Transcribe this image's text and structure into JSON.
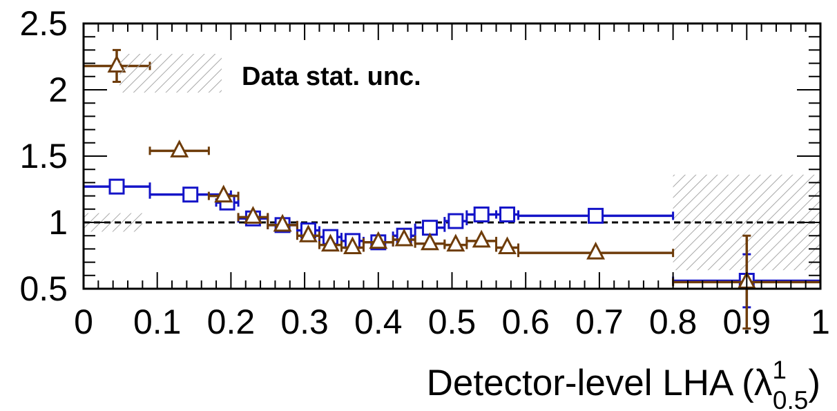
{
  "chart_data": {
    "type": "scatter",
    "title": "",
    "xlabel": {
      "main": "Detector-level LHA (λ",
      "sup": "1",
      "sub": "0.5",
      "close": ")"
    },
    "ylabel": "",
    "xlim": [
      0,
      1
    ],
    "ylim": [
      0.5,
      2.5
    ],
    "x_ticks": [
      "0",
      "0.1",
      "0.2",
      "0.3",
      "0.4",
      "0.5",
      "0.6",
      "0.7",
      "0.8",
      "0.9",
      "1"
    ],
    "y_ticks": [
      "0.5",
      "1",
      "1.5",
      "2",
      "2.5"
    ],
    "reference_line": 1.0,
    "legend": [
      {
        "label": "Data stat. unc.",
        "style": "hatched",
        "position": "top-left"
      }
    ],
    "hatch_bands": [
      {
        "x": [
          0.0,
          0.08
        ],
        "y": [
          0.93,
          1.07
        ]
      },
      {
        "x": [
          0.8,
          1.0
        ],
        "y": [
          0.64,
          1.36
        ]
      }
    ],
    "series": [
      {
        "marker": "open-square",
        "color": "#1414c8",
        "points": [
          {
            "xlo": 0.0,
            "xhi": 0.09,
            "y": 1.27,
            "yerr": 0.05
          },
          {
            "xlo": 0.09,
            "xhi": 0.2,
            "y": 1.21,
            "yerr": 0.02
          },
          {
            "xlo": 0.18,
            "xhi": 0.21,
            "y": 1.15,
            "yerr": 0.02
          },
          {
            "xlo": 0.21,
            "xhi": 0.25,
            "y": 1.03,
            "yerr": 0.01
          },
          {
            "xlo": 0.25,
            "xhi": 0.29,
            "y": 0.98,
            "yerr": 0.01
          },
          {
            "xlo": 0.29,
            "xhi": 0.32,
            "y": 0.94,
            "yerr": 0.01
          },
          {
            "xlo": 0.32,
            "xhi": 0.35,
            "y": 0.89,
            "yerr": 0.01
          },
          {
            "xlo": 0.35,
            "xhi": 0.38,
            "y": 0.86,
            "yerr": 0.01
          },
          {
            "xlo": 0.38,
            "xhi": 0.42,
            "y": 0.85,
            "yerr": 0.01
          },
          {
            "xlo": 0.42,
            "xhi": 0.45,
            "y": 0.9,
            "yerr": 0.01
          },
          {
            "xlo": 0.45,
            "xhi": 0.49,
            "y": 0.96,
            "yerr": 0.01
          },
          {
            "xlo": 0.49,
            "xhi": 0.52,
            "y": 1.01,
            "yerr": 0.01
          },
          {
            "xlo": 0.52,
            "xhi": 0.56,
            "y": 1.06,
            "yerr": 0.01
          },
          {
            "xlo": 0.56,
            "xhi": 0.59,
            "y": 1.06,
            "yerr": 0.01
          },
          {
            "xlo": 0.59,
            "xhi": 0.8,
            "y": 1.05,
            "yerr": 0.01
          },
          {
            "xlo": 0.8,
            "xhi": 1.0,
            "y": 0.56,
            "yerr": 0.2
          }
        ]
      },
      {
        "marker": "open-triangle",
        "color": "#6e3c0a",
        "points": [
          {
            "xlo": 0.0,
            "xhi": 0.09,
            "y": 2.18,
            "yerr": 0.12
          },
          {
            "xlo": 0.09,
            "xhi": 0.17,
            "y": 1.54,
            "yerr": 0.02
          },
          {
            "xlo": 0.17,
            "xhi": 0.21,
            "y": 1.2,
            "yerr": 0.02
          },
          {
            "xlo": 0.21,
            "xhi": 0.25,
            "y": 1.04,
            "yerr": 0.01
          },
          {
            "xlo": 0.25,
            "xhi": 0.29,
            "y": 0.98,
            "yerr": 0.01
          },
          {
            "xlo": 0.29,
            "xhi": 0.32,
            "y": 0.9,
            "yerr": 0.01
          },
          {
            "xlo": 0.32,
            "xhi": 0.35,
            "y": 0.83,
            "yerr": 0.01
          },
          {
            "xlo": 0.35,
            "xhi": 0.38,
            "y": 0.81,
            "yerr": 0.01
          },
          {
            "xlo": 0.38,
            "xhi": 0.42,
            "y": 0.85,
            "yerr": 0.01
          },
          {
            "xlo": 0.42,
            "xhi": 0.45,
            "y": 0.87,
            "yerr": 0.01
          },
          {
            "xlo": 0.45,
            "xhi": 0.49,
            "y": 0.84,
            "yerr": 0.01
          },
          {
            "xlo": 0.49,
            "xhi": 0.52,
            "y": 0.83,
            "yerr": 0.01
          },
          {
            "xlo": 0.52,
            "xhi": 0.56,
            "y": 0.86,
            "yerr": 0.01
          },
          {
            "xlo": 0.56,
            "xhi": 0.59,
            "y": 0.81,
            "yerr": 0.01
          },
          {
            "xlo": 0.59,
            "xhi": 0.8,
            "y": 0.77,
            "yerr": 0.01
          },
          {
            "xlo": 0.8,
            "xhi": 1.0,
            "y": 0.55,
            "yerr": 0.35
          }
        ]
      }
    ]
  }
}
